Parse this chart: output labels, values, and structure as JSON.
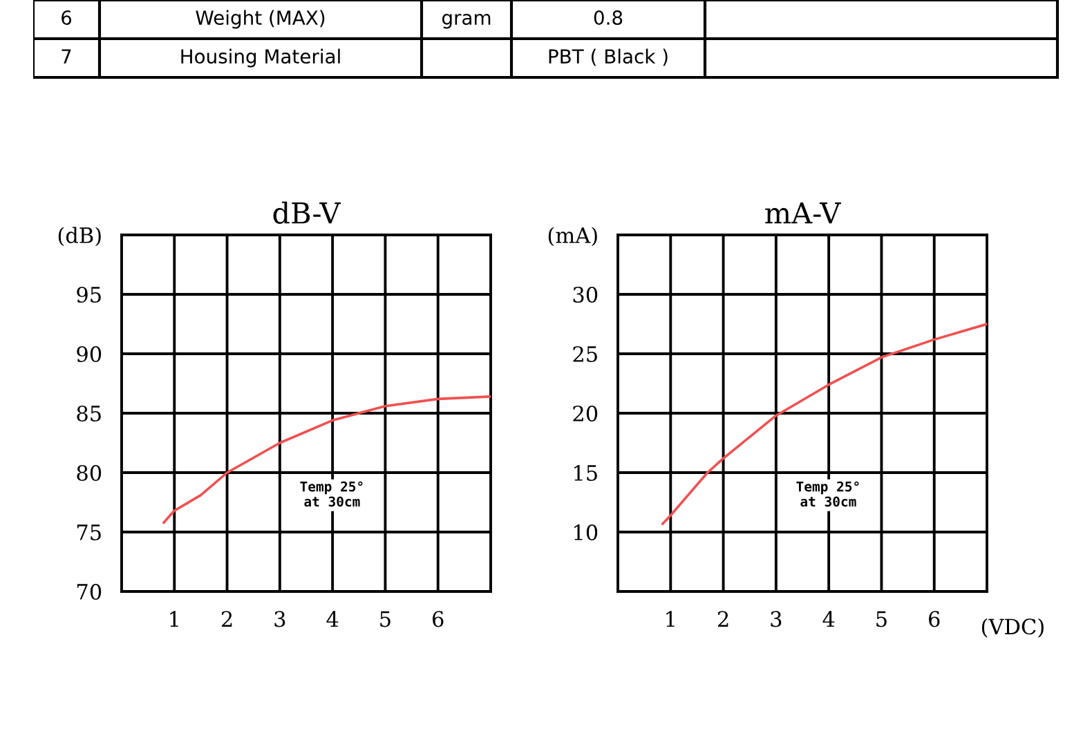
{
  "chart_data": [
    {
      "type": "other",
      "annotations": [
        "6",
        "Weight (MAX)",
        "gram",
        "0.8",
        "7",
        "Housing Material",
        "PBT ( Black )"
      ]
    },
    {
      "type": "line",
      "title": "dB-V",
      "x": [
        0.8,
        1,
        1.5,
        2,
        3,
        4,
        4.5,
        5,
        6,
        7
      ],
      "series": [
        {
          "color": "#f05050",
          "values": [
            75.8,
            76.8,
            78.1,
            80,
            82.5,
            84.4,
            85,
            85.6,
            86.2,
            86.4
          ]
        }
      ],
      "xlim": [
        0,
        7
      ],
      "xticks": [
        1,
        2,
        3,
        4,
        5,
        6
      ],
      "ylim": [
        70,
        100
      ],
      "yticks": [
        70,
        75,
        80,
        85,
        90,
        95,
        {
          "value": 100,
          "label": "(dB)"
        }
      ],
      "grid": true,
      "marker": "none",
      "line_style": "solid",
      "annotations": [
        "Temp 25°\nat 30cm"
      ]
    },
    {
      "type": "line",
      "title": "mA-V",
      "xlabel": "(VDC)",
      "x": [
        0.85,
        1,
        1.7,
        2,
        3,
        4,
        5,
        6,
        7
      ],
      "series": [
        {
          "color": "#f05050",
          "values": [
            10.7,
            11.4,
            15.0,
            16.2,
            19.8,
            22.4,
            24.7,
            26.2,
            27.5
          ]
        }
      ],
      "xlim": [
        0,
        7
      ],
      "xticks": [
        1,
        2,
        3,
        4,
        5,
        6
      ],
      "ylim": [
        5,
        35
      ],
      "yticks": [
        {
          "value": 5,
          "label": null
        },
        10,
        15,
        20,
        25,
        30,
        {
          "value": 35,
          "label": "(mA)"
        }
      ],
      "grid": true,
      "marker": "none",
      "line_style": "solid",
      "annotations": [
        "Temp 25°\nat 30cm"
      ]
    }
  ]
}
